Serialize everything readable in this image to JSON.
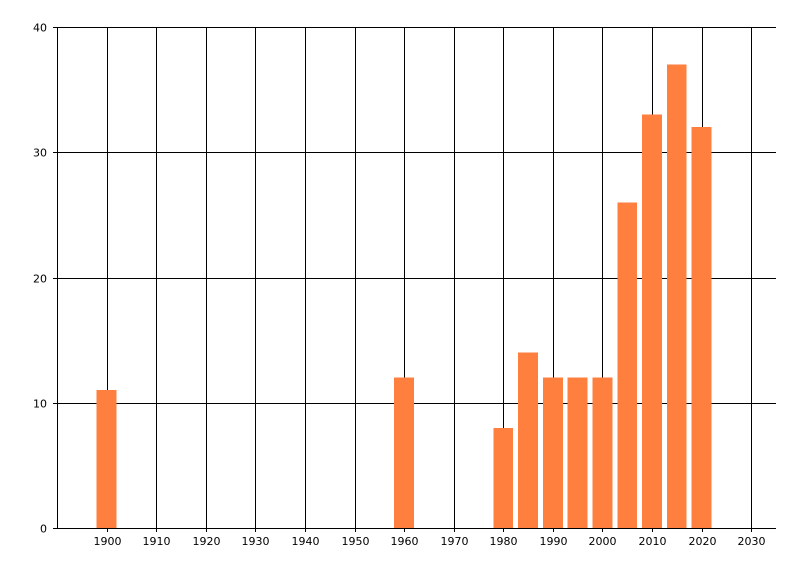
{
  "chart_data": {
    "type": "bar",
    "title": "",
    "xlabel": "",
    "ylabel": "",
    "x": [
      1900,
      1960,
      1980,
      1985,
      1990,
      1995,
      2000,
      2005,
      2010,
      2015,
      2020
    ],
    "values": [
      11,
      12,
      8,
      14,
      12,
      12,
      12,
      26,
      33,
      37,
      32
    ],
    "xlim": [
      1890,
      2035
    ],
    "ylim": [
      0,
      40
    ],
    "x_ticks": [
      1900,
      1910,
      1920,
      1930,
      1940,
      1950,
      1960,
      1970,
      1980,
      1990,
      2000,
      2010,
      2020,
      2030
    ],
    "y_ticks": [
      0,
      10,
      20,
      30,
      40
    ],
    "grid": true,
    "bar_color": "#ff7f3f",
    "grid_color": "#000000"
  }
}
